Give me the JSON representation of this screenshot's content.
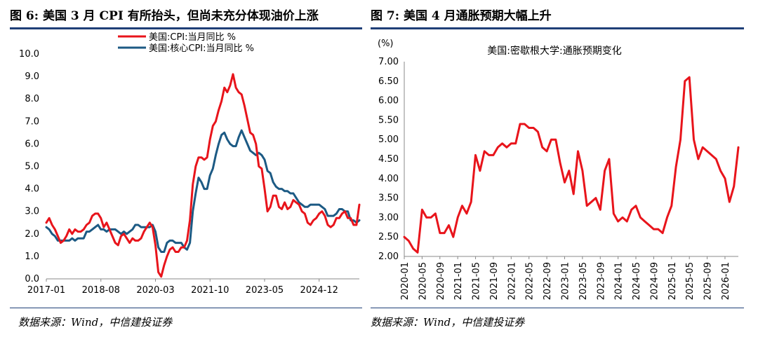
{
  "left": {
    "figure_title": "图 6:  美国 3 月 CPI 有所抬头，但尚未充分体现油价上涨",
    "source": "数据来源：Wind，中信建投证券",
    "colors": {
      "cpi": "#e8141b",
      "core": "#1c5a84"
    },
    "chart_data": {
      "type": "line",
      "title": "",
      "xlabel": "",
      "ylabel": "",
      "ylim": [
        0,
        10
      ],
      "yticks": [
        "0.0",
        "1.0",
        "2.0",
        "3.0",
        "4.0",
        "5.0",
        "6.0",
        "7.0",
        "8.0",
        "9.0",
        "10.0"
      ],
      "x_start": "2017-01",
      "x_end": "2026-03",
      "xtick_labels": [
        {
          "label": "2017-01",
          "month_index": 0
        },
        {
          "label": "2018-08",
          "month_index": 19
        },
        {
          "label": "2020-03",
          "month_index": 38
        },
        {
          "label": "2021-10",
          "month_index": 57
        },
        {
          "label": "2023-05",
          "month_index": 76
        },
        {
          "label": "2024-12",
          "month_index": 95
        }
      ],
      "legend_position": "top-center",
      "series": [
        {
          "name": "美国:CPI:当月同比 %",
          "values": [
            2.5,
            2.7,
            2.4,
            2.2,
            1.9,
            1.6,
            1.7,
            1.9,
            2.2,
            2.0,
            2.2,
            2.1,
            2.1,
            2.2,
            2.4,
            2.5,
            2.8,
            2.9,
            2.9,
            2.7,
            2.3,
            2.5,
            2.2,
            1.9,
            1.6,
            1.5,
            1.9,
            2.0,
            1.8,
            1.6,
            1.8,
            1.7,
            1.7,
            1.8,
            2.1,
            2.3,
            2.5,
            2.3,
            1.5,
            0.3,
            0.1,
            0.6,
            1.0,
            1.3,
            1.4,
            1.2,
            1.2,
            1.4,
            1.4,
            1.7,
            2.6,
            4.2,
            5.0,
            5.4,
            5.4,
            5.3,
            5.4,
            6.2,
            6.8,
            7.0,
            7.5,
            7.9,
            8.5,
            8.3,
            8.6,
            9.1,
            8.5,
            8.3,
            8.2,
            7.7,
            7.1,
            6.5,
            6.4,
            6.0,
            5.0,
            4.9,
            4.0,
            3.0,
            3.2,
            3.7,
            3.7,
            3.2,
            3.1,
            3.4,
            3.1,
            3.2,
            3.5,
            3.4,
            3.3,
            3.0,
            2.9,
            2.5,
            2.4,
            2.6,
            2.7,
            2.9,
            3.0,
            2.8,
            2.4,
            2.3,
            2.4,
            2.7,
            2.7,
            2.9,
            3.0,
            2.7,
            2.7,
            2.4,
            2.4,
            3.3
          ]
        },
        {
          "name": "美国:核心CPI:当月同比 %",
          "values": [
            2.3,
            2.2,
            2.0,
            1.9,
            1.7,
            1.7,
            1.7,
            1.7,
            1.7,
            1.8,
            1.7,
            1.8,
            1.8,
            1.8,
            2.1,
            2.1,
            2.2,
            2.3,
            2.4,
            2.2,
            2.2,
            2.1,
            2.2,
            2.2,
            2.2,
            2.1,
            2.0,
            2.1,
            2.0,
            2.1,
            2.2,
            2.4,
            2.4,
            2.3,
            2.3,
            2.3,
            2.3,
            2.4,
            2.1,
            1.4,
            1.2,
            1.2,
            1.6,
            1.7,
            1.7,
            1.6,
            1.6,
            1.6,
            1.4,
            1.3,
            1.6,
            3.0,
            3.8,
            4.5,
            4.3,
            4.0,
            4.0,
            4.6,
            4.9,
            5.5,
            6.0,
            6.4,
            6.5,
            6.2,
            6.0,
            5.9,
            5.9,
            6.3,
            6.6,
            6.3,
            6.0,
            5.7,
            5.6,
            5.5,
            5.6,
            5.5,
            5.3,
            4.8,
            4.7,
            4.3,
            4.1,
            4.0,
            4.0,
            3.9,
            3.9,
            3.8,
            3.8,
            3.6,
            3.4,
            3.3,
            3.2,
            3.2,
            3.3,
            3.3,
            3.3,
            3.3,
            3.2,
            3.1,
            2.8,
            2.8,
            2.8,
            2.9,
            3.1,
            3.1,
            3.0,
            3.0,
            2.6,
            2.6,
            2.5,
            2.6
          ]
        }
      ]
    }
  },
  "right": {
    "figure_title": "图 7:  美国 4 月通胀预期大幅上升",
    "source": "数据来源：Wind，中信建投证券",
    "colors": {
      "line": "#e8141b"
    },
    "chart_data": {
      "type": "line",
      "title": "美国:密歇根大学:通胀预期变化",
      "xlabel": "",
      "ylabel": "(%)",
      "ylim": [
        2.0,
        7.0
      ],
      "yticks": [
        "2.00",
        "2.50",
        "3.00",
        "3.50",
        "4.00",
        "4.50",
        "5.00",
        "5.50",
        "6.00",
        "6.50",
        "7.00"
      ],
      "x_start": "2020-01",
      "x_end": "2026-04",
      "xtick_labels": [
        {
          "label": "2020-01",
          "month_index": 0
        },
        {
          "label": "2020-05",
          "month_index": 4
        },
        {
          "label": "2020-09",
          "month_index": 8
        },
        {
          "label": "2021-01",
          "month_index": 12
        },
        {
          "label": "2021-05",
          "month_index": 16
        },
        {
          "label": "2021-09",
          "month_index": 20
        },
        {
          "label": "2022-01",
          "month_index": 24
        },
        {
          "label": "2022-05",
          "month_index": 28
        },
        {
          "label": "2022-09",
          "month_index": 32
        },
        {
          "label": "2023-01",
          "month_index": 36
        },
        {
          "label": "2023-05",
          "month_index": 40
        },
        {
          "label": "2023-09",
          "month_index": 44
        },
        {
          "label": "2024-01",
          "month_index": 48
        },
        {
          "label": "2024-05",
          "month_index": 52
        },
        {
          "label": "2024-09",
          "month_index": 56
        },
        {
          "label": "2025-01",
          "month_index": 60
        },
        {
          "label": "2025-05",
          "month_index": 64
        },
        {
          "label": "2025-09",
          "month_index": 68
        },
        {
          "label": "2026-01",
          "month_index": 72
        }
      ],
      "series": [
        {
          "name": "美国:密歇根大学:通胀预期变化",
          "values": [
            2.5,
            2.4,
            2.2,
            2.1,
            3.2,
            3.0,
            3.0,
            3.1,
            2.6,
            2.6,
            2.8,
            2.5,
            3.0,
            3.3,
            3.1,
            3.4,
            4.6,
            4.2,
            4.7,
            4.6,
            4.6,
            4.8,
            4.9,
            4.8,
            4.9,
            4.9,
            5.4,
            5.4,
            5.3,
            5.3,
            5.2,
            4.8,
            4.7,
            5.0,
            5.0,
            4.4,
            3.9,
            4.2,
            3.6,
            4.7,
            4.2,
            3.3,
            3.4,
            3.5,
            3.2,
            4.2,
            4.5,
            3.1,
            2.9,
            3.0,
            2.9,
            3.2,
            3.3,
            3.0,
            2.9,
            2.8,
            2.7,
            2.7,
            2.6,
            3.0,
            3.3,
            4.3,
            5.0,
            6.5,
            6.6,
            5.0,
            4.5,
            4.8,
            4.7,
            4.6,
            4.5,
            4.2,
            4.0,
            3.4,
            3.8,
            4.8
          ]
        }
      ]
    }
  }
}
